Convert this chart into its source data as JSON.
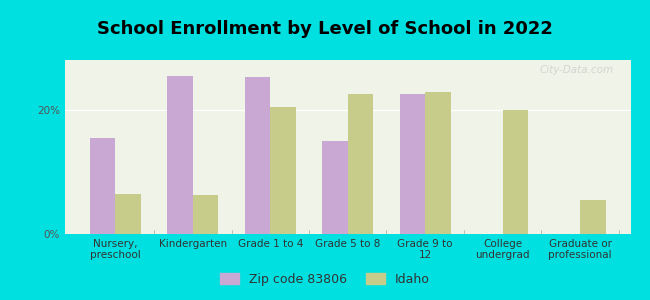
{
  "title": "School Enrollment by Level of School in 2022",
  "categories": [
    "Nursery,\npreschool",
    "Kindergarten",
    "Grade 1 to 4",
    "Grade 5 to 8",
    "Grade 9 to\n12",
    "College\nundergrad",
    "Graduate or\nprofessional"
  ],
  "zip_values": [
    15.5,
    25.5,
    25.2,
    15.0,
    22.5,
    0.0,
    0.0
  ],
  "idaho_values": [
    6.5,
    6.2,
    20.5,
    22.5,
    22.8,
    20.0,
    5.5
  ],
  "zip_color": "#c9a8d4",
  "idaho_color": "#c8cc8a",
  "background_color": "#00e0e0",
  "plot_bg": "#f0f4e8",
  "ylabel_ticks": [
    "0%",
    "20%"
  ],
  "yticks": [
    0,
    20
  ],
  "ylim": [
    0,
    28
  ],
  "legend_labels": [
    "Zip code 83806",
    "Idaho"
  ],
  "watermark": "City-Data.com",
  "bar_width": 0.33,
  "title_fontsize": 13,
  "tick_fontsize": 7.5
}
